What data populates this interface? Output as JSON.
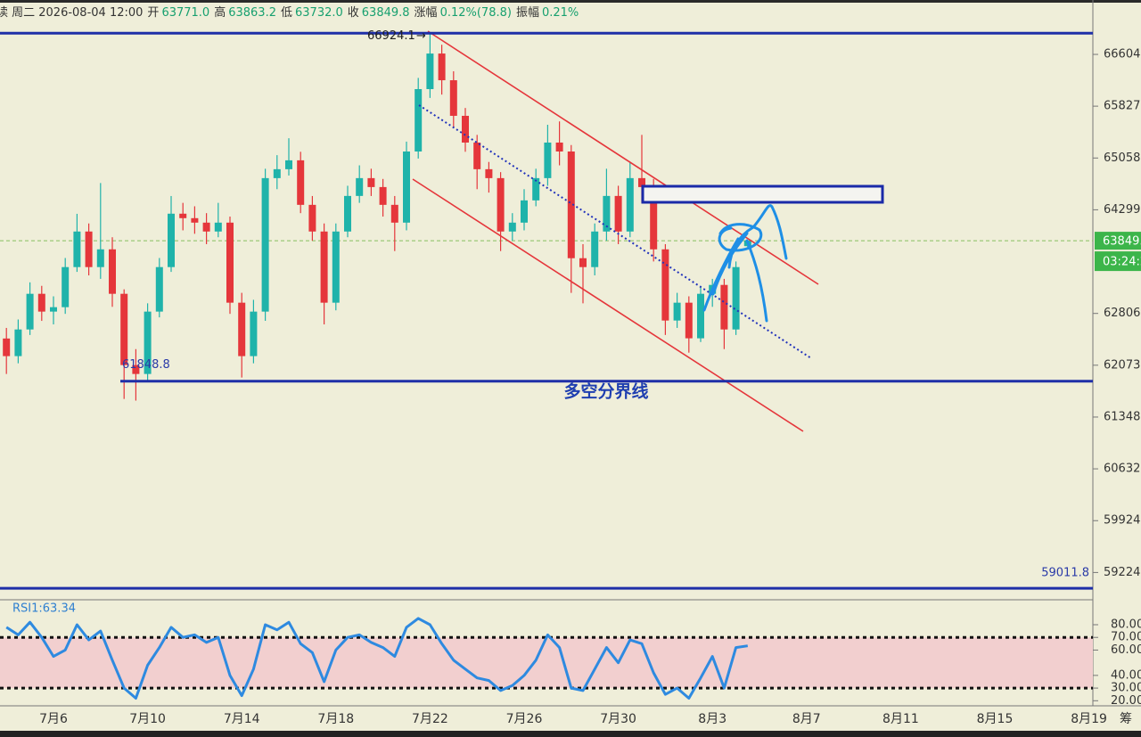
{
  "header": {
    "date": "读 周二 2026-08-04 12:00",
    "fields": [
      {
        "label": "开",
        "value": "63771.0"
      },
      {
        "label": "高",
        "value": "63863.2"
      },
      {
        "label": "低",
        "value": "63732.0"
      },
      {
        "label": "收",
        "value": "63849.8"
      },
      {
        "label": "涨幅",
        "value": "0.12%(78.8)"
      },
      {
        "label": "振幅",
        "value": "0.21%"
      }
    ]
  },
  "chart_data": {
    "type": "candlestick",
    "log_scale": true,
    "up_color": "#1fb3aa",
    "down_color": "#e5363b",
    "categories": [
      null,
      null,
      null,
      null,
      "7月6",
      null,
      null,
      null,
      null,
      null,
      null,
      null,
      "7月10",
      null,
      null,
      null,
      null,
      null,
      null,
      null,
      "7月14",
      null,
      null,
      null,
      null,
      null,
      null,
      null,
      "7月18",
      null,
      null,
      null,
      null,
      null,
      null,
      null,
      "7月22",
      null,
      null,
      null,
      null,
      null,
      null,
      null,
      "7月26",
      null,
      null,
      null,
      null,
      null,
      null,
      null,
      "7月30",
      null,
      null,
      null,
      null,
      null,
      null,
      null,
      "8月3",
      null,
      null,
      null,
      null,
      null,
      null,
      null,
      "8月7",
      null,
      null,
      null,
      null,
      null,
      null,
      null,
      "8月11",
      null,
      null,
      null,
      null,
      null,
      null,
      null,
      "8月15",
      null,
      null,
      null,
      null,
      null,
      null,
      null,
      "8月19"
    ],
    "open": [
      62450,
      62201,
      62578,
      63086,
      62832,
      62895,
      63469,
      63983,
      63469,
      63725,
      63086,
      62075,
      61950,
      62832,
      63469,
      64242,
      64177,
      64112,
      63983,
      64112,
      62959,
      62201,
      62832,
      64762,
      64893,
      65024,
      64371,
      63983,
      62959,
      63983,
      64501,
      64762,
      64631,
      64371,
      64112,
      65154,
      66082,
      66617,
      66215,
      65683,
      65286,
      64893,
      64762,
      63983,
      64112,
      64436,
      64762,
      65286,
      65154,
      63597,
      63469,
      63983,
      64501,
      63983,
      64762,
      64631,
      63725,
      62705,
      62959,
      62453,
      63086,
      63213,
      62578,
      63771,
      null,
      null,
      null,
      null,
      null,
      null,
      null,
      null,
      null,
      null,
      null,
      null,
      null,
      null,
      null,
      null,
      null,
      null,
      null,
      null,
      null,
      null,
      null,
      null,
      null,
      null,
      null,
      null,
      null
    ],
    "high": [
      62600,
      62720,
      63250,
      63200,
      63050,
      63600,
      64240,
      64100,
      64690,
      63900,
      63150,
      62300,
      62950,
      63600,
      64500,
      64400,
      64350,
      64250,
      64400,
      64200,
      63100,
      63000,
      64900,
      65100,
      65350,
      65150,
      64500,
      64100,
      64100,
      64650,
      64950,
      64900,
      64750,
      64500,
      65300,
      66250,
      66924.1,
      66750,
      66350,
      65800,
      65400,
      65000,
      64850,
      64250,
      64600,
      64900,
      65550,
      65600,
      65250,
      63800,
      64100,
      64900,
      64650,
      65000,
      65400,
      64750,
      63800,
      63100,
      63050,
      63200,
      63300,
      63300,
      63550,
      63863.2,
      null,
      null,
      null,
      null,
      null,
      null,
      null,
      null,
      null,
      null,
      null,
      null,
      null,
      null,
      null,
      null,
      null,
      null,
      null,
      null,
      null,
      null,
      null,
      null,
      null,
      null,
      null,
      null,
      null
    ],
    "low": [
      61950,
      62100,
      62500,
      62700,
      62650,
      62800,
      63400,
      63350,
      63300,
      62900,
      61600,
      61577,
      61850,
      62750,
      63400,
      64000,
      63950,
      63800,
      63900,
      62800,
      61900,
      62100,
      62700,
      64600,
      64800,
      64250,
      63850,
      62650,
      62850,
      63900,
      64400,
      64500,
      64200,
      63700,
      64000,
      65050,
      65950,
      66000,
      65500,
      65150,
      64600,
      64550,
      63700,
      63850,
      64000,
      64350,
      64650,
      64950,
      63100,
      62950,
      63350,
      63850,
      63800,
      63900,
      64400,
      63550,
      62500,
      62600,
      62250,
      62400,
      62900,
      62300,
      62500,
      63732,
      null,
      null,
      null,
      null,
      null,
      null,
      null,
      null,
      null,
      null,
      null,
      null,
      null,
      null,
      null,
      null,
      null,
      null,
      null,
      null,
      null,
      null,
      null,
      null,
      null,
      null,
      null,
      null,
      null
    ],
    "close": [
      62201,
      62578,
      63086,
      62832,
      62895,
      63469,
      63983,
      63469,
      63725,
      63086,
      62075,
      61950,
      62832,
      63469,
      64242,
      64177,
      64112,
      63983,
      64112,
      62959,
      62201,
      62832,
      64762,
      64893,
      65024,
      64371,
      63983,
      62959,
      63983,
      64501,
      64762,
      64631,
      64371,
      64112,
      65154,
      66082,
      66617,
      66215,
      65683,
      65286,
      64893,
      64762,
      63983,
      64112,
      64436,
      64762,
      65286,
      65154,
      63597,
      63469,
      63983,
      64501,
      63983,
      64762,
      64631,
      63725,
      62705,
      62959,
      62453,
      63086,
      63213,
      62578,
      63469,
      63849.8,
      null,
      null,
      null,
      null,
      null,
      null,
      null,
      null,
      null,
      null,
      null,
      null,
      null,
      null,
      null,
      null,
      null,
      null,
      null,
      null,
      null,
      null,
      null,
      null,
      null,
      null,
      null,
      null,
      null
    ],
    "ylim": [
      58990,
      67050
    ],
    "yticks": [
      {
        "value": 66604,
        "label": "66604."
      },
      {
        "value": 65827,
        "label": "65827."
      },
      {
        "value": 65058,
        "label": "65058."
      },
      {
        "value": 64299,
        "label": "64299."
      },
      {
        "value": 62806,
        "label": "62806."
      },
      {
        "value": 62073,
        "label": "62073."
      },
      {
        "value": 61348,
        "label": "61348."
      },
      {
        "value": 60632,
        "label": "60632."
      },
      {
        "value": 59924,
        "label": "59924."
      },
      {
        "value": 59224,
        "label": "59224."
      }
    ],
    "lines": [
      {
        "value": 66924.1,
        "color": "#1f2fa8"
      },
      {
        "value": 61848.8,
        "color": "#1f2fa8"
      },
      {
        "value": 59011.8,
        "color": "#1f2fa8"
      }
    ],
    "annotation": "多空分界线",
    "last_price": 63849.8,
    "price_tag": "63849.",
    "countdown": "03:24:2",
    "price_color": "#3cb54a",
    "right_tab": "筹",
    "rsi": {
      "label": "RSI1:63.34",
      "color": "#2e8ae0",
      "band_color": "#f2cfcf",
      "overbought": 70,
      "oversold": 30,
      "values": [
        78,
        72,
        82,
        70,
        55,
        60,
        80,
        68,
        75,
        52,
        30,
        22,
        48,
        62,
        78,
        70,
        72,
        66,
        70,
        40,
        24,
        45,
        80,
        76,
        82,
        65,
        58,
        35,
        60,
        70,
        72,
        66,
        62,
        55,
        78,
        85,
        80,
        65,
        52,
        45,
        38,
        36,
        28,
        32,
        40,
        52,
        72,
        62,
        30,
        28,
        45,
        62,
        50,
        68,
        65,
        42,
        25,
        30,
        22,
        38,
        55,
        30,
        62,
        63.34,
        null,
        null,
        null,
        null,
        null,
        null,
        null,
        null,
        null,
        null,
        null,
        null,
        null,
        null,
        null,
        null,
        null,
        null,
        null,
        null,
        null,
        null,
        null,
        null,
        null,
        null,
        null,
        null,
        null
      ],
      "ylim": [
        16,
        99
      ],
      "yticks": [
        {
          "value": 80,
          "label": "80.00"
        },
        {
          "value": 70,
          "label": "70.00"
        },
        {
          "value": 60,
          "label": "60.00"
        },
        {
          "value": 40,
          "label": "40.00"
        },
        {
          "value": 30,
          "label": "30.00"
        },
        {
          "value": 20,
          "label": "20.00"
        }
      ]
    }
  }
}
